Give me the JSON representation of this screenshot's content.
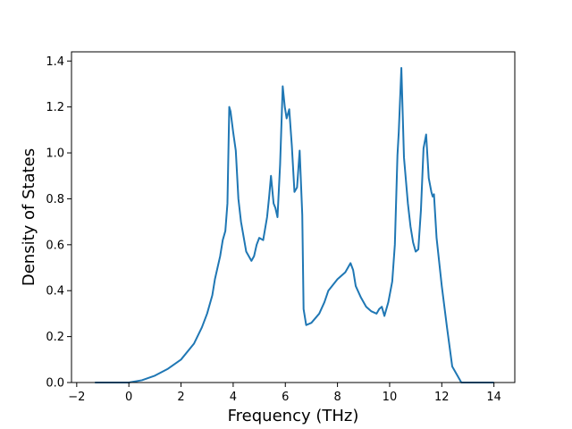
{
  "chart_data": {
    "type": "line",
    "title": "",
    "xlabel": "Frequency (THz)",
    "ylabel": "Density of States",
    "xlim": [
      -2.2,
      14.8
    ],
    "ylim": [
      0.0,
      1.44
    ],
    "xticks": [
      -2,
      0,
      2,
      4,
      6,
      8,
      10,
      12,
      14
    ],
    "yticks": [
      0.0,
      0.2,
      0.4,
      0.6,
      0.8,
      1.0,
      1.2,
      1.4
    ],
    "xtick_labels": [
      "−2",
      "0",
      "2",
      "4",
      "6",
      "8",
      "10",
      "12",
      "14"
    ],
    "ytick_labels": [
      "0.0",
      "0.2",
      "0.4",
      "0.6",
      "0.8",
      "1.0",
      "1.2",
      "1.4"
    ],
    "grid": false,
    "line_color": "#1f77b4",
    "series": [
      {
        "x": [
          -1.3,
          -0.5,
          0.0,
          0.5,
          1.0,
          1.5,
          2.0,
          2.5,
          2.8,
          3.0,
          3.2,
          3.3,
          3.4,
          3.5,
          3.6,
          3.7,
          3.78,
          3.85,
          3.9,
          4.0,
          4.1,
          4.2,
          4.3,
          4.5,
          4.7,
          4.8,
          4.9,
          5.0,
          5.15,
          5.3,
          5.38,
          5.45,
          5.55,
          5.62,
          5.7,
          5.8,
          5.9,
          5.98,
          6.05,
          6.15,
          6.25,
          6.35,
          6.45,
          6.55,
          6.65,
          6.7,
          6.8,
          7.0,
          7.3,
          7.5,
          7.65,
          8.0,
          8.3,
          8.5,
          8.6,
          8.7,
          8.9,
          9.1,
          9.3,
          9.5,
          9.6,
          9.7,
          9.8,
          9.95,
          10.1,
          10.2,
          10.3,
          10.35,
          10.45,
          10.55,
          10.7,
          10.8,
          10.9,
          11.0,
          11.1,
          11.2,
          11.3,
          11.4,
          11.5,
          11.6,
          11.65,
          11.7,
          11.8,
          12.0,
          12.2,
          12.4,
          12.5,
          12.6,
          12.75,
          13.0,
          14.0
        ],
        "y": [
          0.0,
          0.0,
          0.0,
          0.01,
          0.03,
          0.06,
          0.1,
          0.17,
          0.24,
          0.3,
          0.38,
          0.45,
          0.5,
          0.55,
          0.62,
          0.66,
          0.78,
          1.2,
          1.18,
          1.09,
          1.01,
          0.8,
          0.7,
          0.57,
          0.53,
          0.55,
          0.6,
          0.63,
          0.62,
          0.72,
          0.81,
          0.9,
          0.78,
          0.76,
          0.72,
          0.95,
          1.29,
          1.2,
          1.15,
          1.19,
          1.03,
          0.83,
          0.85,
          1.01,
          0.73,
          0.32,
          0.25,
          0.26,
          0.3,
          0.35,
          0.4,
          0.45,
          0.48,
          0.52,
          0.49,
          0.42,
          0.37,
          0.33,
          0.31,
          0.3,
          0.32,
          0.33,
          0.29,
          0.35,
          0.44,
          0.6,
          0.99,
          1.09,
          1.37,
          0.98,
          0.78,
          0.68,
          0.61,
          0.57,
          0.58,
          0.75,
          1.02,
          1.08,
          0.89,
          0.83,
          0.81,
          0.82,
          0.63,
          0.42,
          0.24,
          0.07,
          0.05,
          0.03,
          0.0,
          0.0,
          0.0
        ]
      }
    ]
  }
}
